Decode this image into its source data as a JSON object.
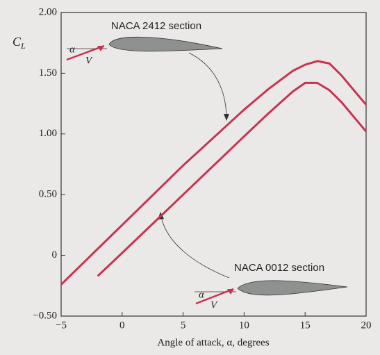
{
  "chart_data": {
    "type": "line",
    "x_label": "Angle of attack, α, degrees",
    "y_label": {
      "symbol": "C",
      "subscript": "L"
    },
    "xlim": [
      -5,
      20
    ],
    "ylim": [
      -0.5,
      2.0
    ],
    "xticks": [
      {
        "value": -5,
        "label": "−5"
      },
      0,
      5,
      10,
      15,
      20
    ],
    "yticks": [
      {
        "value": -0.5,
        "label": "−0.50"
      },
      0,
      {
        "value": 0.5,
        "label": "0.50"
      },
      {
        "value": 1.0,
        "label": "1.00"
      },
      {
        "value": 1.5,
        "label": "1.50"
      },
      {
        "value": 2.0,
        "label": "2.00"
      }
    ],
    "grid": false,
    "series": [
      {
        "name": "NACA 2412 section",
        "color": "#c8334f",
        "alpha": "α",
        "velocity": "V",
        "x": [
          -5,
          0,
          5,
          10,
          12,
          14,
          15,
          16,
          17,
          18,
          19,
          20
        ],
        "y": [
          -0.24,
          0.25,
          0.74,
          1.2,
          1.37,
          1.52,
          1.57,
          1.6,
          1.58,
          1.48,
          1.36,
          1.24
        ]
      },
      {
        "name": "NACA 0012 section",
        "color": "#c8334f",
        "alpha": "α",
        "velocity": "V",
        "x": [
          -2,
          0,
          5,
          10,
          12,
          14,
          15,
          16,
          17,
          18,
          19,
          20
        ],
        "y": [
          -0.17,
          0.02,
          0.5,
          0.98,
          1.17,
          1.35,
          1.42,
          1.42,
          1.36,
          1.26,
          1.14,
          1.02
        ]
      }
    ]
  }
}
